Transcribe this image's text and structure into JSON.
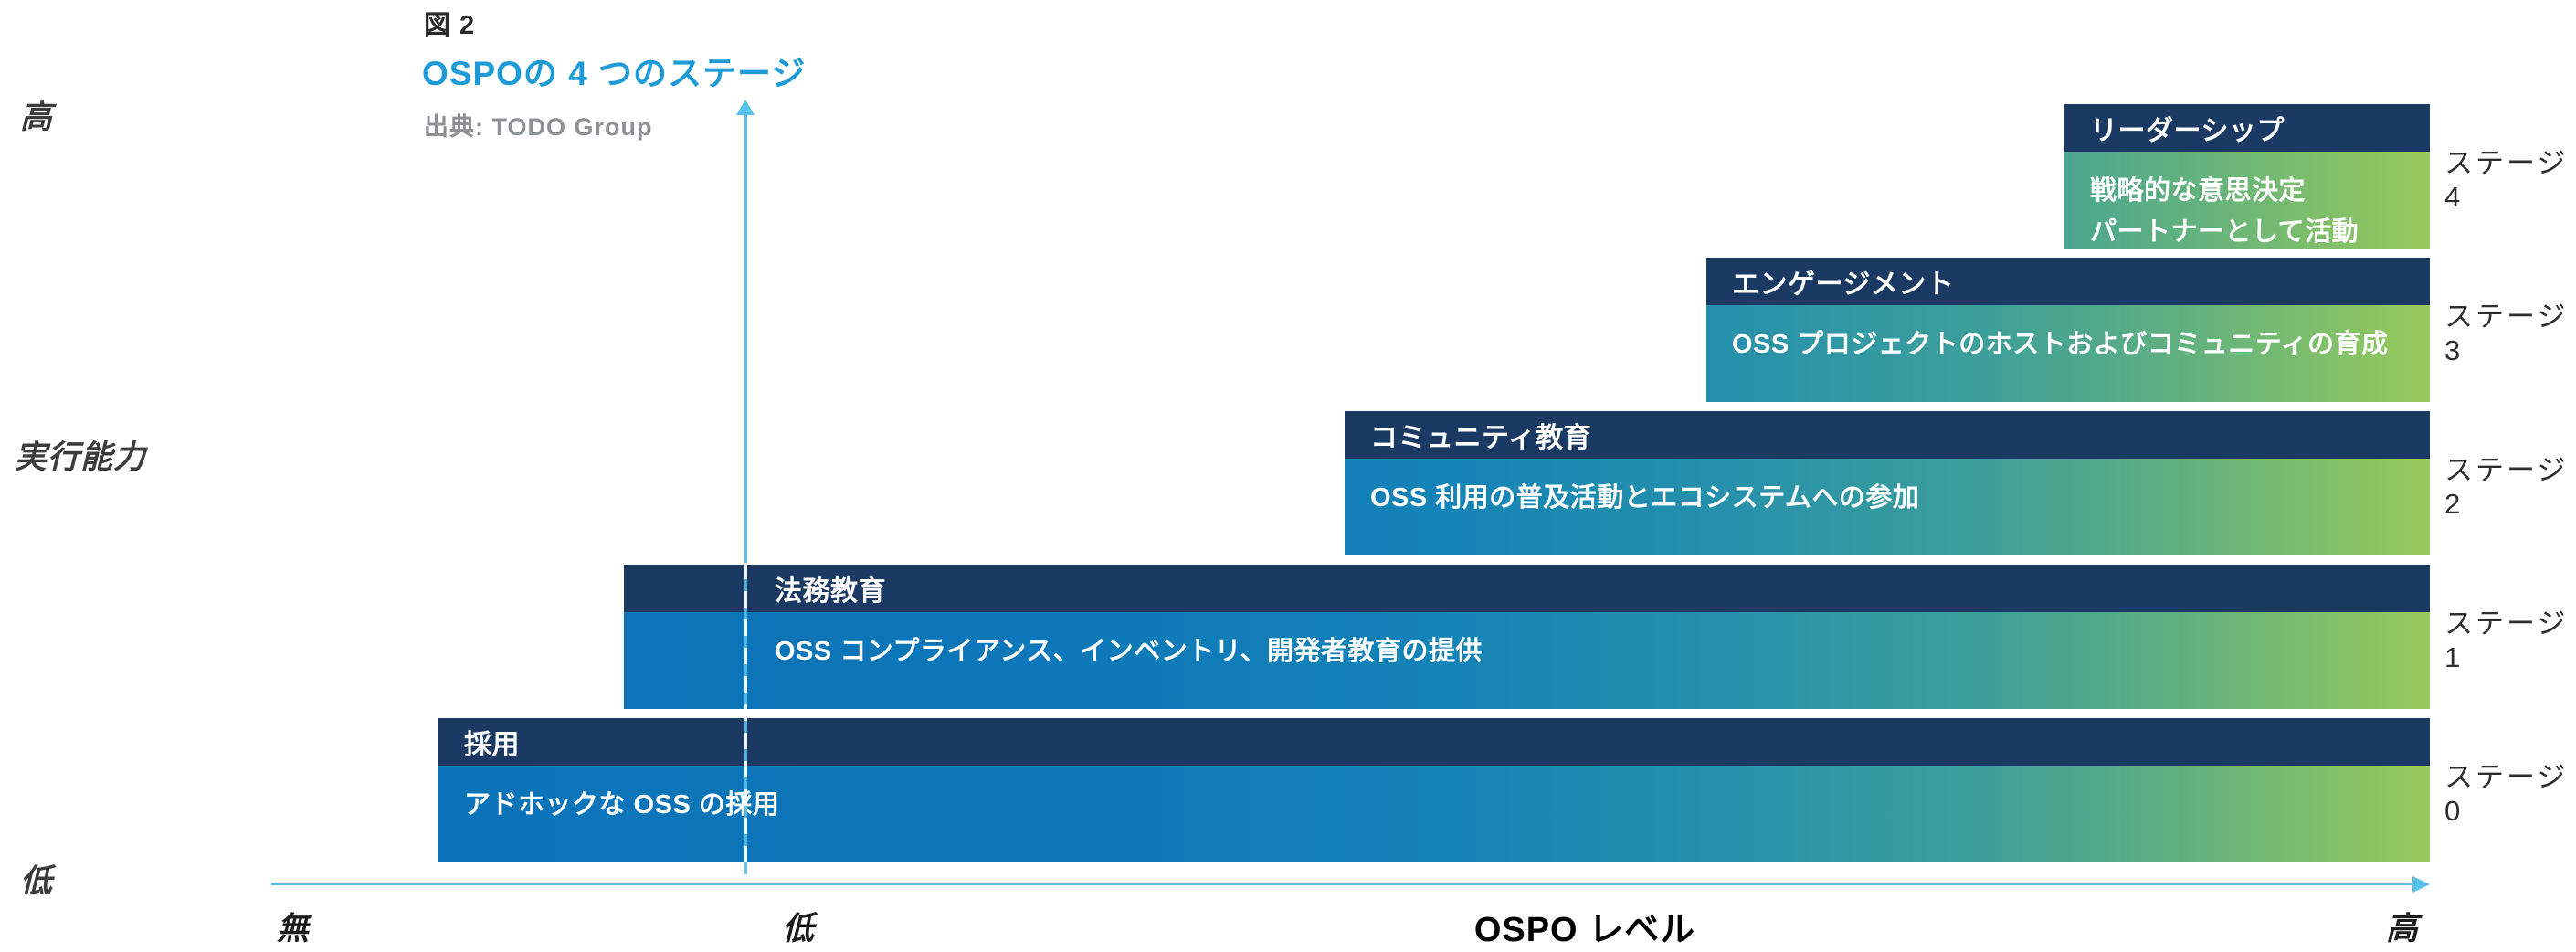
{
  "figure": {
    "number_label": "図 2",
    "title": "OSPOの 4 つのステージ",
    "source": "出典: TODO Group"
  },
  "y_axis": {
    "high_label": "高",
    "axis_title": "実行能力",
    "low_label": "低"
  },
  "x_axis": {
    "none_label": "無",
    "low_label": "低",
    "axis_title": "OSPO レベル",
    "high_label": "高"
  },
  "stages": [
    {
      "id": 0,
      "label": "ステージ0",
      "header": "採用",
      "description": "アドホックな OSS の採用"
    },
    {
      "id": 1,
      "label": "ステージ1",
      "header": "法務教育",
      "description": "OSS コンプライアンス、インベントリ、開発者教育の提供"
    },
    {
      "id": 2,
      "label": "ステージ2",
      "header": "コミュニティ教育",
      "description": "OSS 利用の普及活動とエコシステムへの参加"
    },
    {
      "id": 3,
      "label": "ステージ3",
      "header": "エンゲージメント",
      "description": "OSS プロジェクトのホストおよびコミュニティの育成"
    },
    {
      "id": 4,
      "label": "ステージ4",
      "header": "リーダーシップ",
      "description": "戦略的な意思決定\nパートナーとして活動"
    }
  ],
  "colors": {
    "title_blue": "#1e9ad6",
    "axis_light_blue": "#56c0e8",
    "header_navy": "#1b3a63",
    "gradient_start_blue": "#0b73b8",
    "gradient_mid_teal": "#2691ab",
    "gradient_end_green": "#98ca5b",
    "source_gray": "#8d9194",
    "label_dark": "#2e2e2e"
  },
  "chart_data": {
    "type": "bar",
    "orientation": "horizontal-staircase",
    "title": "OSPOの 4 つのステージ",
    "source": "出典: TODO Group",
    "xlabel": "OSPO レベル",
    "ylabel": "実行能力",
    "x_tick_labels": [
      "無",
      "低",
      "高"
    ],
    "y_endpoint_labels": [
      "低",
      "高"
    ],
    "x_range": [
      0,
      1
    ],
    "categories": [
      "ステージ0",
      "ステージ1",
      "ステージ2",
      "ステージ3",
      "ステージ4"
    ],
    "series": [
      {
        "name": "採用",
        "stage": "ステージ0",
        "description": "アドホックな OSS の採用",
        "x_start_frac": 0.0,
        "x_end_frac": 1.0
      },
      {
        "name": "法務教育",
        "stage": "ステージ1",
        "description": "OSS コンプライアンス、インベントリ、開発者教育の提供",
        "x_start_frac": 0.093,
        "x_end_frac": 1.0
      },
      {
        "name": "コミュニティ教育",
        "stage": "ステージ2",
        "description": "OSS 利用の普及活動とエコシステムへの参加",
        "x_start_frac": 0.455,
        "x_end_frac": 1.0
      },
      {
        "name": "エンゲージメント",
        "stage": "ステージ3",
        "description": "OSS プロジェクトのホストおよびコミュニティの育成",
        "x_start_frac": 0.637,
        "x_end_frac": 1.0
      },
      {
        "name": "リーダーシップ",
        "stage": "ステージ4",
        "description": "戦略的な意思決定 パートナーとして活動",
        "x_start_frac": 0.817,
        "x_end_frac": 1.0
      }
    ],
    "legend": "none",
    "grid": "off",
    "notes": "Each stage bar has a navy title strip and a body filled by one shared left-to-right blue→teal→green gradient; a dashed vertical guide marks the 低 level on the OSPO レベル axis."
  }
}
